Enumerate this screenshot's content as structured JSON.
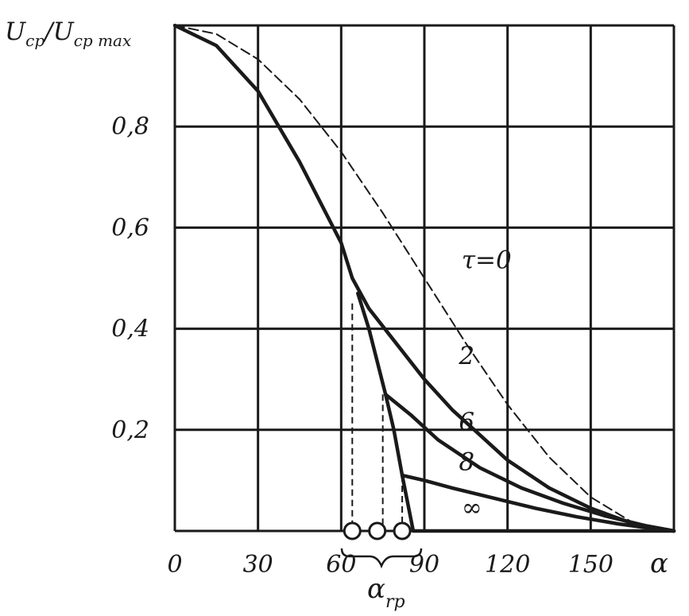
{
  "chart_data": {
    "type": "line",
    "ylabel_main": "U",
    "ylabel_sub1": "cp",
    "ylabel_mid": "/U",
    "ylabel_sub2": "cp max",
    "xlabel": "α",
    "xlabel_group": "α",
    "xlabel_group_sub": "rp",
    "x_ticks": [
      "0",
      "30",
      "60",
      "90",
      "120",
      "150"
    ],
    "y_ticks": [
      "0,2",
      "0,4",
      "0,6",
      "0,8"
    ],
    "xlim": [
      0,
      180
    ],
    "ylim": [
      0,
      1.0
    ],
    "grid": true,
    "series": [
      {
        "name": "τ=0",
        "style": "dashed",
        "x": [
          0,
          15,
          30,
          45,
          60,
          75,
          90,
          105,
          120,
          135,
          150,
          165,
          180
        ],
        "y": [
          1.0,
          0.983,
          0.933,
          0.854,
          0.75,
          0.629,
          0.5,
          0.371,
          0.25,
          0.146,
          0.067,
          0.017,
          0.0
        ]
      },
      {
        "name": "2",
        "style": "solid",
        "x": [
          0,
          15,
          30,
          45,
          60,
          64,
          70,
          80,
          90,
          100,
          110,
          120,
          135,
          150,
          165,
          180
        ],
        "y": [
          1.0,
          0.96,
          0.87,
          0.73,
          0.57,
          0.5,
          0.44,
          0.37,
          0.3,
          0.24,
          0.19,
          0.14,
          0.085,
          0.045,
          0.015,
          0.0
        ]
      },
      {
        "name": "6",
        "style": "solid",
        "x": [
          66,
          70,
          76,
          85,
          95,
          110,
          125,
          140,
          155,
          170,
          180
        ],
        "y": [
          0.47,
          0.4,
          0.27,
          0.23,
          0.18,
          0.125,
          0.085,
          0.055,
          0.03,
          0.01,
          0.0
        ]
      },
      {
        "name": "8",
        "style": "solid",
        "x": [
          76,
          79,
          82,
          90,
          100,
          115,
          130,
          145,
          160,
          172,
          180
        ],
        "y": [
          0.27,
          0.2,
          0.11,
          0.1,
          0.085,
          0.065,
          0.045,
          0.028,
          0.014,
          0.005,
          0.0
        ]
      },
      {
        "name": "∞",
        "style": "solid",
        "x": [
          82,
          86,
          120,
          150,
          180
        ],
        "y": [
          0.11,
          0.0,
          0.0,
          0.0,
          0.0
        ]
      }
    ],
    "drop_lines_x": [
      64,
      75,
      82
    ],
    "marker_x": [
      64,
      73,
      82
    ]
  }
}
